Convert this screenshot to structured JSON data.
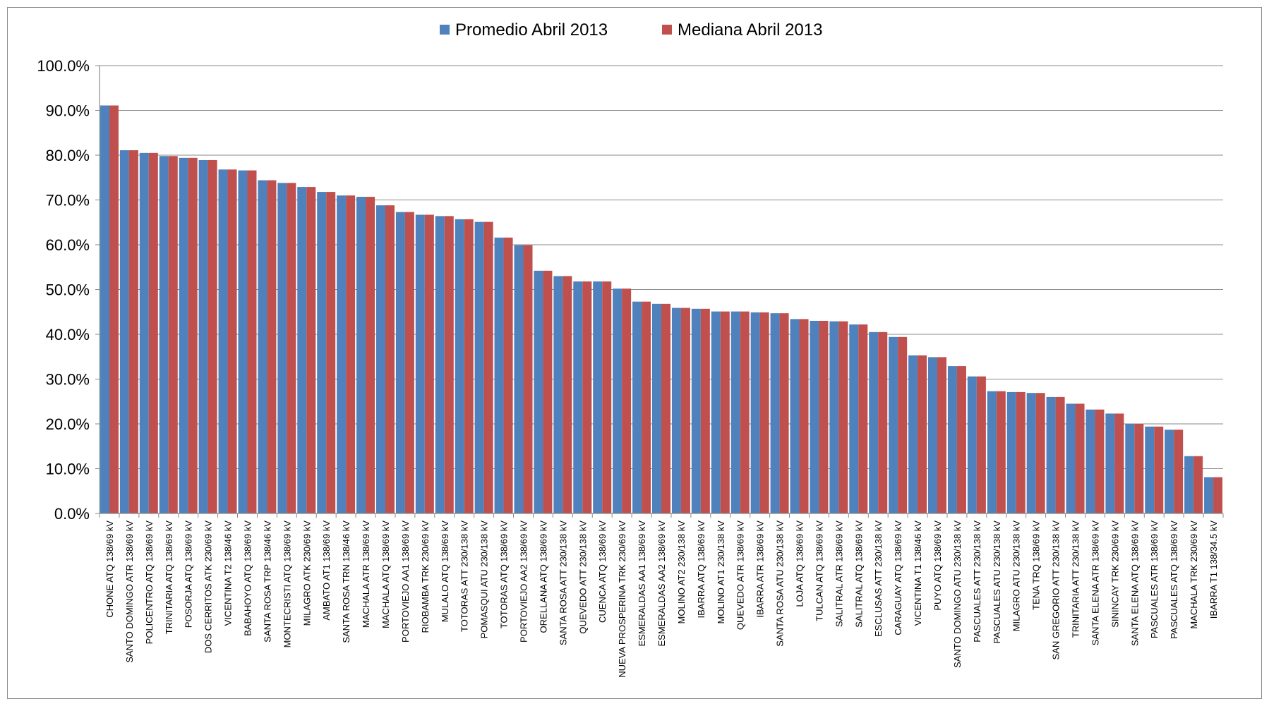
{
  "chart_data": {
    "type": "bar",
    "title": "",
    "xlabel": "",
    "ylabel": "",
    "ylim": [
      0,
      100
    ],
    "y_ticks": [
      "0.0%",
      "10.0%",
      "20.0%",
      "30.0%",
      "40.0%",
      "50.0%",
      "60.0%",
      "70.0%",
      "80.0%",
      "90.0%",
      "100.0%"
    ],
    "grid": "horizontal",
    "legend_position": "top-center",
    "categories": [
      "CHONE ATQ 138/69 kV",
      "SANTO DOMINGO ATR 138/69 kV",
      "POLICENTRO ATQ 138/69 kV",
      "TRINITARIA ATQ 138/69 kV",
      "POSORJA ATQ 138/69 kV",
      "DOS CERRITOS ATK 230/69 kV",
      "VICENTINA T2 138/46 kV",
      "BABAHOYO ATQ 138/69 kV",
      "SANTA ROSA TRP 138/46 kV",
      "MONTECRISTI ATQ 138/69 kV",
      "MILAGRO ATK 230/69 kV",
      "AMBATO AT1 138/69 kV",
      "SANTA ROSA TRN 138/46 kV",
      "MACHALA ATR 138/69 kV",
      "MACHALA ATQ 138/69 kV",
      "PORTOVIEJO AA1 138/69 kV",
      "RIOBAMBA TRK 230/69 kV",
      "MULALO ATQ 138/69 kV",
      "TOTORAS ATT 230/138 kV",
      "POMASQUI ATU 230/138 kV",
      "TOTORAS ATQ 138/69 kV",
      "PORTOVIEJO AA2 138/69 kV",
      "ORELLANA ATQ 138/69 kV",
      "SANTA ROSA ATT 230/138 kV",
      "QUEVEDO ATT 230/138 kV",
      "CUENCA ATQ 138/69 kV",
      "NUEVA PROSPERINA TRK 230/69 kV",
      "ESMERALDAS AA1 138/69 kV",
      "ESMERALDAS AA2 138/69 kV",
      "MOLINO AT2 230/138 kV",
      "IBARRA ATQ 138/69 kV",
      "MOLINO AT1 230/138 kV",
      "QUEVEDO ATR 138/69 kV",
      "IBARRA ATR 138/69 kV",
      "SANTA ROSA ATU 230/138 kV",
      "LOJA ATQ 138/69 kV",
      "TULCAN ATQ 138/69 kV",
      "SALITRAL ATR 138/69 kV",
      "SALITRAL ATQ 138/69 kV",
      "ESCLUSAS ATT 230/138 kV",
      "CARAGUAY ATQ 138/69 kV",
      "VICENTINA T1 138/46 kV",
      "PUYO ATQ 138/69 kV",
      "SANTO DOMINGO ATU 230/138 kV",
      "PASCUALES ATT 230/138 kV",
      "PASCUALES ATU 230/138 kV",
      "MILAGRO ATU 230/138 kV",
      "TENA TRQ 138/69 kV",
      "SAN GREGORIO ATT 230/138 kV",
      "TRINITARIA ATT 230/138 kV",
      "SANTA ELENA ATR 138/69 kV",
      "SININCAY TRK 230/69 kV",
      "SANTA ELENA ATQ 138/69 kV",
      "PASCUALES ATR 138/69 kV",
      "PASCUALES ATQ 138/69 kV",
      "MACHALA TRK 230/69 kV",
      "IBARRA T1 138/34.5 kV"
    ],
    "series": [
      {
        "name": "Promedio Abril 2013",
        "color": "#4f81bd",
        "values": [
          91.1,
          81.1,
          80.5,
          79.8,
          79.4,
          78.9,
          76.8,
          76.6,
          74.4,
          73.8,
          72.9,
          71.8,
          71.0,
          70.7,
          68.8,
          67.3,
          66.7,
          66.4,
          65.7,
          65.1,
          61.6,
          59.9,
          54.2,
          53.0,
          51.8,
          51.8,
          50.2,
          47.3,
          46.8,
          45.9,
          45.7,
          45.1,
          45.1,
          44.9,
          44.7,
          43.4,
          43.0,
          42.9,
          42.2,
          40.5,
          39.4,
          35.3,
          34.9,
          32.9,
          30.6,
          27.3,
          27.1,
          26.9,
          26.0,
          24.5,
          23.2,
          22.3,
          20.0,
          19.4,
          18.7,
          12.8,
          8.1
        ]
      },
      {
        "name": "Mediana Abril 2013",
        "color": "#c0504d",
        "values": [
          91.1,
          81.1,
          80.5,
          79.8,
          79.4,
          78.9,
          76.8,
          76.6,
          74.4,
          73.8,
          72.9,
          71.8,
          71.0,
          70.7,
          68.8,
          67.3,
          66.7,
          66.4,
          65.7,
          65.1,
          61.6,
          59.9,
          54.2,
          53.0,
          51.8,
          51.8,
          50.2,
          47.3,
          46.8,
          45.9,
          45.7,
          45.1,
          45.1,
          44.9,
          44.7,
          43.4,
          43.0,
          42.9,
          42.2,
          40.5,
          39.4,
          35.3,
          34.9,
          32.9,
          30.6,
          27.3,
          27.1,
          26.9,
          26.0,
          24.5,
          23.2,
          22.3,
          20.0,
          19.4,
          18.7,
          12.8,
          8.1
        ]
      }
    ]
  }
}
